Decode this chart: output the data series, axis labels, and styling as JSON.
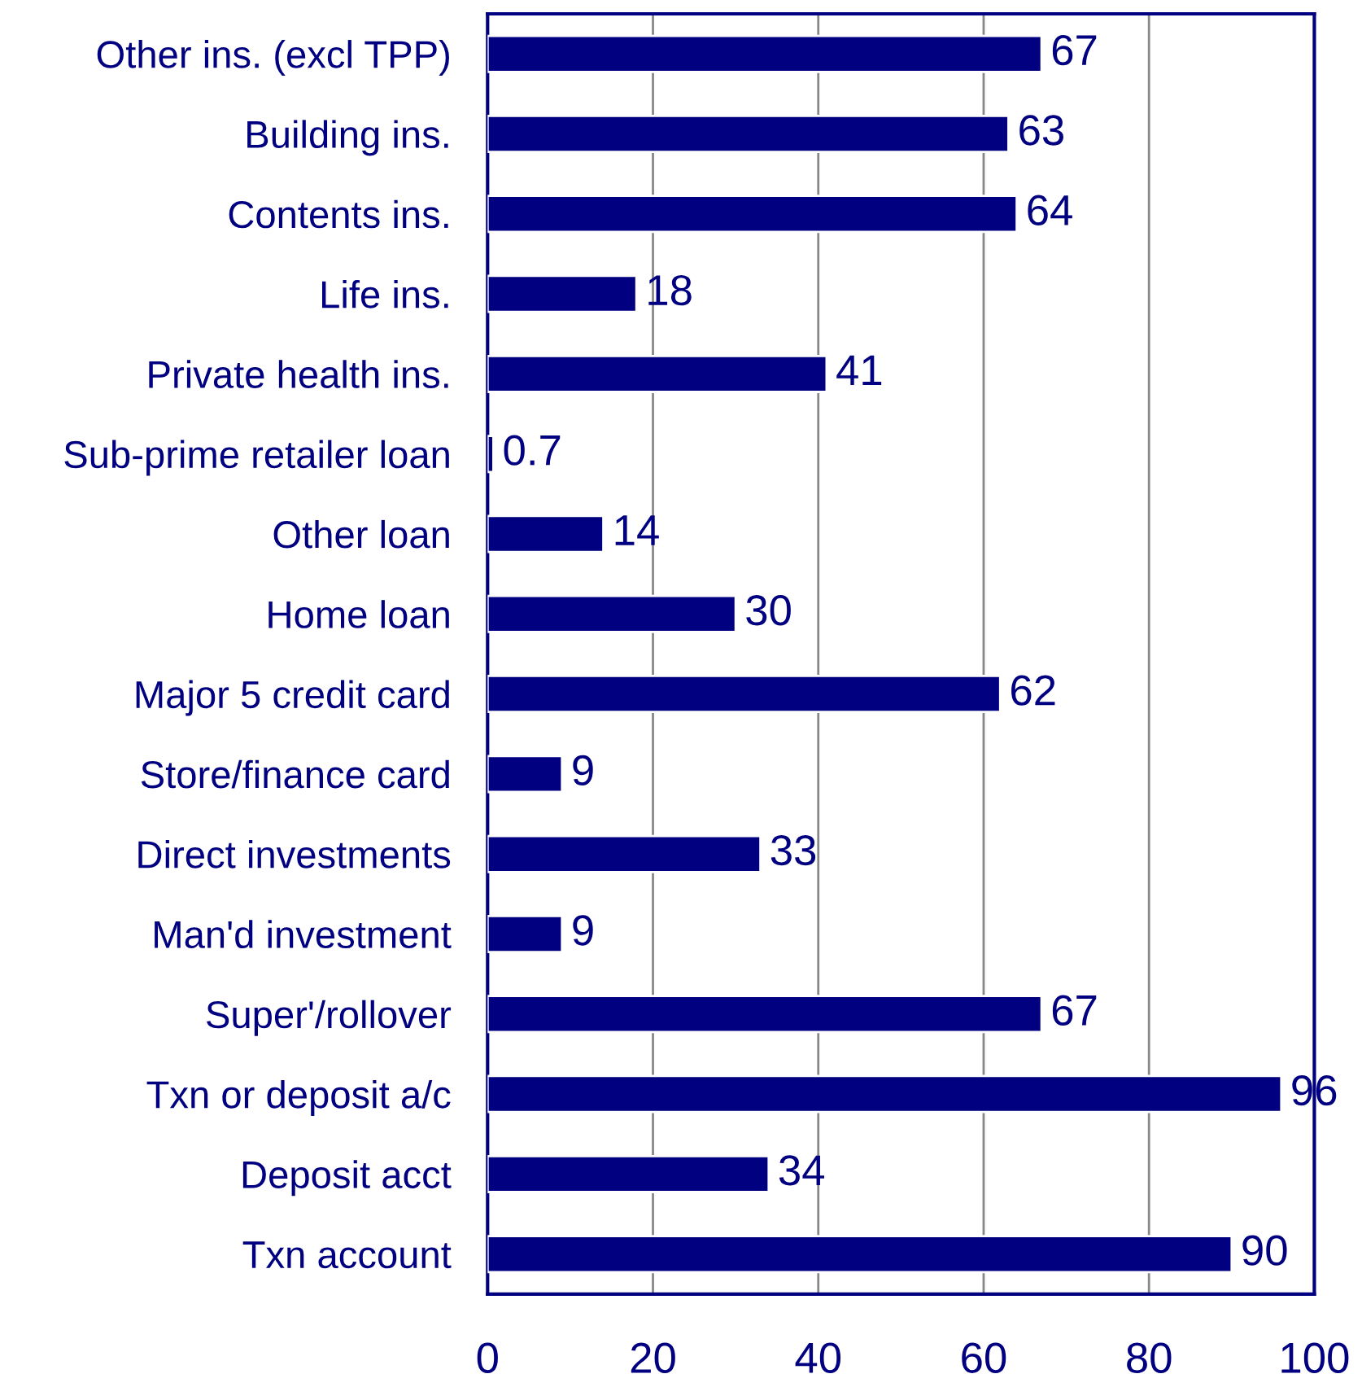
{
  "chart_data": {
    "type": "bar",
    "orientation": "horizontal",
    "categories": [
      "Other ins. (excl TPP)",
      "Building ins.",
      "Contents ins.",
      "Life ins.",
      "Private health ins.",
      "Sub-prime retailer loan",
      "Other loan",
      "Home loan",
      "Major 5 credit card",
      "Store/finance card",
      "Direct investments",
      "Man'd investment",
      "Super'/rollover",
      "Txn or deposit a/c",
      "Deposit acct",
      "Txn account"
    ],
    "values": [
      67,
      63,
      64,
      18,
      41,
      0.7,
      14,
      30,
      62,
      9,
      33,
      9,
      67,
      96,
      34,
      90
    ],
    "color": "#000080",
    "xlim": [
      0,
      100
    ],
    "xticks": [
      0,
      20,
      40,
      60,
      80,
      100
    ],
    "grid": "x",
    "data_labels": true
  }
}
